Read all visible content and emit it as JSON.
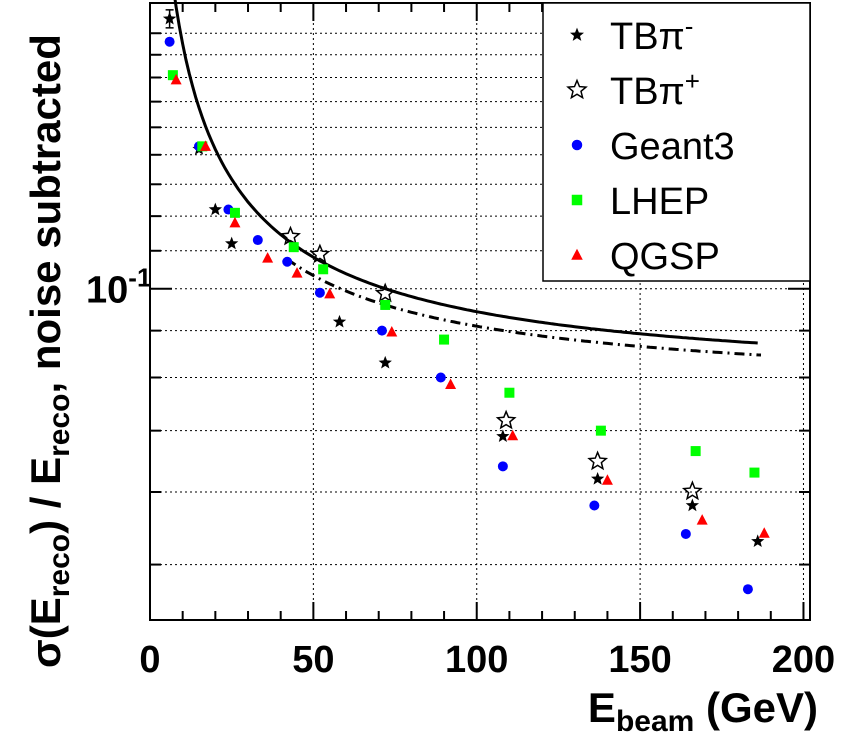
{
  "chart_data": {
    "type": "scatter",
    "xlabel": "E",
    "xlabel_sub": "beam",
    "xlabel_unit": " (GeV)",
    "ylabel_parts": [
      "σ(E",
      "reco",
      ") / E",
      "reco",
      ", noise subtracted"
    ],
    "xlim": [
      0,
      202
    ],
    "ylim": [
      0.0435,
      0.205
    ],
    "y_scale": "log",
    "grid": true,
    "legend_position": "top-right",
    "x_ticks": [
      {
        "value": 0,
        "label": "0"
      },
      {
        "value": 50,
        "label": "50"
      },
      {
        "value": 100,
        "label": "100"
      },
      {
        "value": 150,
        "label": "150"
      },
      {
        "value": 200,
        "label": "200"
      }
    ],
    "y_tick_label": {
      "value": 0.1,
      "base": "10",
      "exp": "-1"
    },
    "series": [
      {
        "name": "TBπ⁻",
        "name_base": "TBπ",
        "name_sup": "-",
        "marker": "star-filled",
        "color": "#000000",
        "x": [
          6,
          15,
          20,
          25,
          58,
          72,
          108,
          137,
          166,
          186
        ],
        "y": [
          0.197,
          0.142,
          0.122,
          0.112,
          0.092,
          0.083,
          0.069,
          0.062,
          0.058,
          0.053
        ]
      },
      {
        "name": "TBπ⁺",
        "name_base": "TBπ",
        "name_sup": "+",
        "marker": "star-open",
        "color": "#000000",
        "x": [
          43,
          52,
          72,
          109,
          137,
          166
        ],
        "y": [
          0.114,
          0.109,
          0.0988,
          0.0718,
          0.0648,
          0.0601
        ]
      },
      {
        "name": "Geant3",
        "marker": "circle",
        "color": "#0000ff",
        "x": [
          6,
          15,
          24,
          33,
          42,
          52,
          71,
          89,
          108,
          136,
          164,
          183
        ],
        "y": [
          0.186,
          0.143,
          0.122,
          0.113,
          0.107,
          0.099,
          0.09,
          0.08,
          0.064,
          0.058,
          0.054,
          0.047
        ]
      },
      {
        "name": "LHEP",
        "marker": "square",
        "color": "#00ff00",
        "x": [
          7,
          16,
          26,
          44,
          53,
          72,
          90,
          110,
          138,
          167,
          185
        ],
        "y": [
          0.171,
          0.143,
          0.121,
          0.111,
          0.105,
          0.096,
          0.088,
          0.077,
          0.07,
          0.0665,
          0.063
        ]
      },
      {
        "name": "QGSP",
        "marker": "triangle",
        "color": "#ff0000",
        "x": [
          8,
          17,
          26,
          36,
          45,
          55,
          74,
          92,
          111,
          140,
          169,
          188
        ],
        "y": [
          0.169,
          0.143,
          0.118,
          0.108,
          0.104,
          0.0987,
          0.0897,
          0.0786,
          0.0691,
          0.0618,
          0.0559,
          0.0541
        ]
      }
    ],
    "fits": [
      {
        "style": "solid",
        "x_range": [
          7,
          186
        ],
        "a": 0.0045,
        "b": 0.53,
        "c": 0.04
      },
      {
        "style": "dash-dot",
        "x_range": [
          42,
          187
        ],
        "a": 0.0042,
        "b": 0.49,
        "c": 0.041
      }
    ]
  }
}
